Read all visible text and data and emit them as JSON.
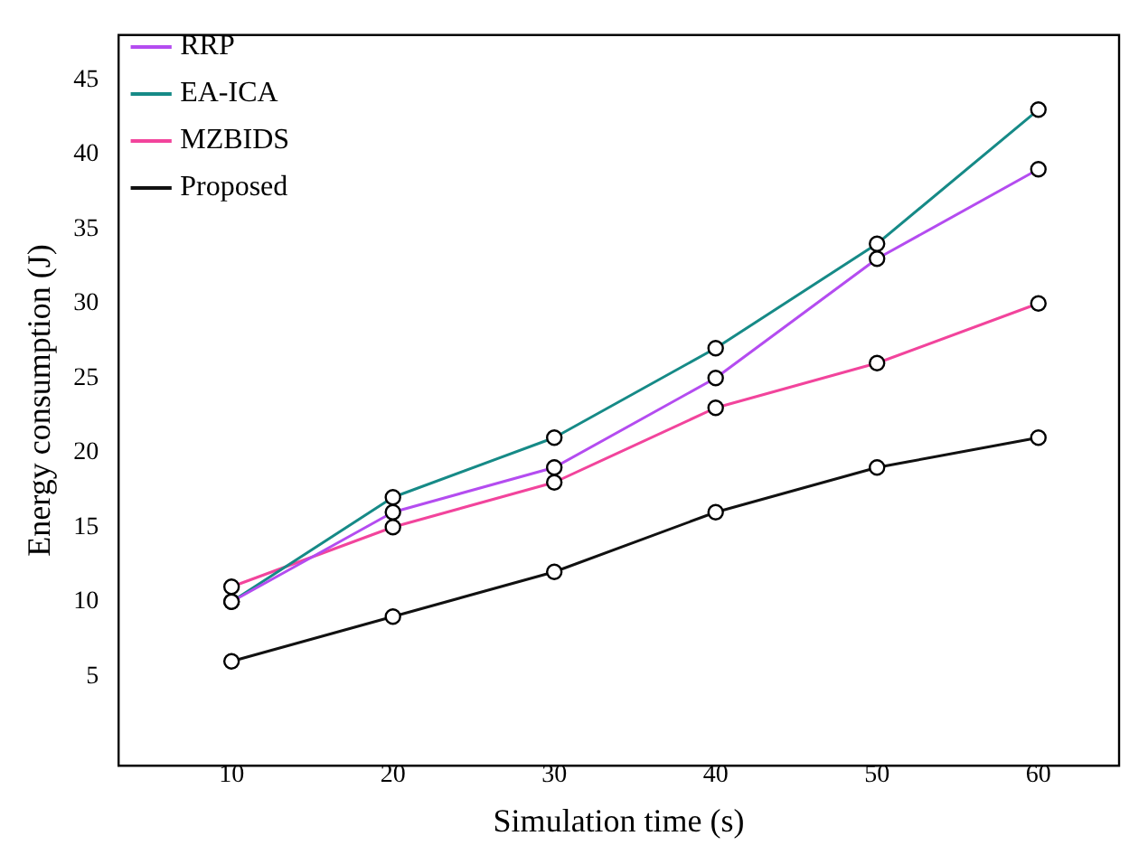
{
  "chart_data": {
    "type": "line",
    "xlabel": "Simulation time (s)",
    "ylabel": "Energy consumption (J)",
    "x": [
      10,
      20,
      30,
      40,
      50,
      60
    ],
    "series": [
      {
        "name": "RRP",
        "color": "#b44cf0",
        "values": [
          10,
          16,
          19,
          25,
          33,
          39
        ]
      },
      {
        "name": "EA-ICA",
        "color": "#168a87",
        "values": [
          10,
          17,
          21,
          27,
          34,
          43
        ]
      },
      {
        "name": "MZBIDS",
        "color": "#f2449c",
        "values": [
          11,
          15,
          18,
          23,
          26,
          30
        ]
      },
      {
        "name": "Proposed",
        "color": "#111111",
        "values": [
          6,
          9,
          12,
          16,
          19,
          21
        ]
      }
    ],
    "xlim": [
      3,
      65
    ],
    "xticks": [
      10,
      20,
      30,
      40,
      50,
      60
    ],
    "ylim": [
      -1,
      48
    ],
    "yticks": [
      5,
      10,
      15,
      20,
      25,
      30,
      35,
      40,
      45
    ],
    "grid": false,
    "legend": "top left",
    "marker": "circle",
    "line_style": "solid"
  }
}
